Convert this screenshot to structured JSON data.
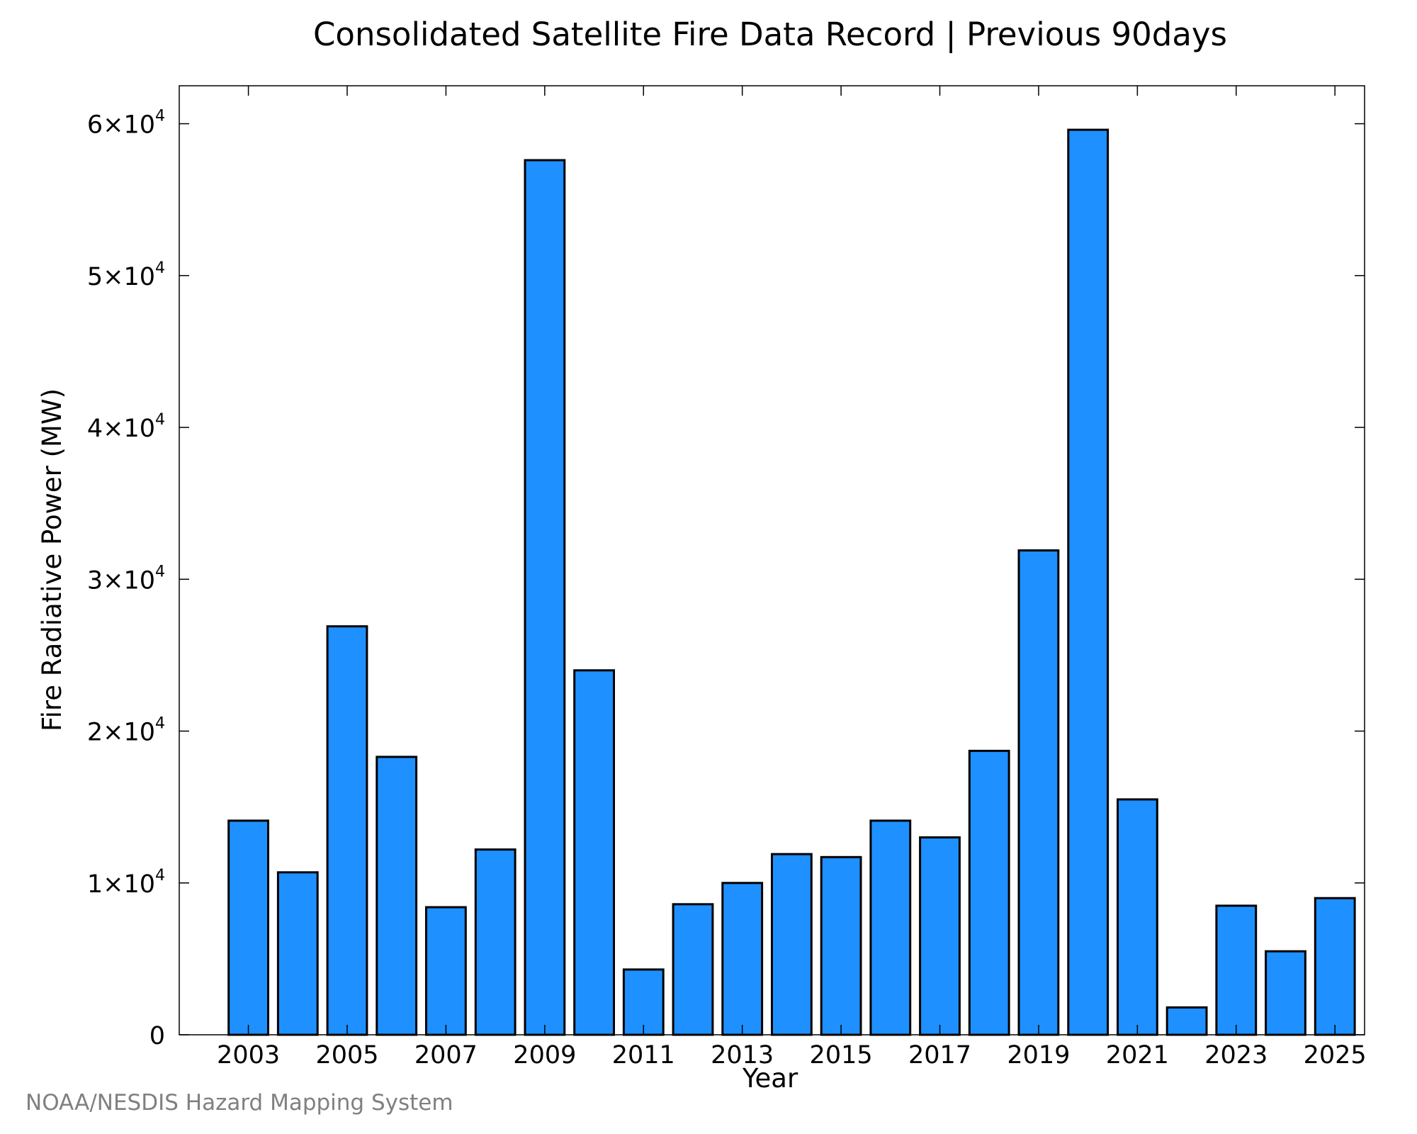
{
  "credit": "NOAA/NESDIS Hazard Mapping System",
  "colors": {
    "bar_fill": "#1e90ff",
    "bar_stroke": "#000000",
    "credit_text": "#808080"
  },
  "chart_data": {
    "type": "bar",
    "title": "Consolidated Satellite Fire Data Record | Previous 90days",
    "xlabel": "Year",
    "ylabel": "Fire Radiative Power (MW)",
    "ylim": [
      0,
      62500
    ],
    "xlim": [
      2001.6,
      2025.6
    ],
    "grid": false,
    "categories": [
      "2003",
      "2004",
      "2005",
      "2006",
      "2007",
      "2008",
      "2009",
      "2010",
      "2011",
      "2012",
      "2013",
      "2014",
      "2015",
      "2016",
      "2017",
      "2018",
      "2019",
      "2020",
      "2021",
      "2022",
      "2023",
      "2024",
      "2025"
    ],
    "values": [
      14100,
      10700,
      26900,
      18300,
      8400,
      12200,
      57600,
      24000,
      4300,
      8600,
      10000,
      11900,
      11700,
      14100,
      13000,
      18700,
      31900,
      59600,
      15500,
      1800,
      8500,
      5500,
      9000
    ],
    "xticks": [
      "2003",
      "2005",
      "2007",
      "2009",
      "2011",
      "2013",
      "2015",
      "2017",
      "2019",
      "2021",
      "2023",
      "2025"
    ],
    "yticks": [
      {
        "value": 0,
        "mant": "0",
        "exp": ""
      },
      {
        "value": 10000,
        "mant": "1×10",
        "exp": "4"
      },
      {
        "value": 20000,
        "mant": "2×10",
        "exp": "4"
      },
      {
        "value": 30000,
        "mant": "3×10",
        "exp": "4"
      },
      {
        "value": 40000,
        "mant": "4×10",
        "exp": "4"
      },
      {
        "value": 50000,
        "mant": "5×10",
        "exp": "4"
      },
      {
        "value": 60000,
        "mant": "6×10",
        "exp": "4"
      }
    ]
  }
}
